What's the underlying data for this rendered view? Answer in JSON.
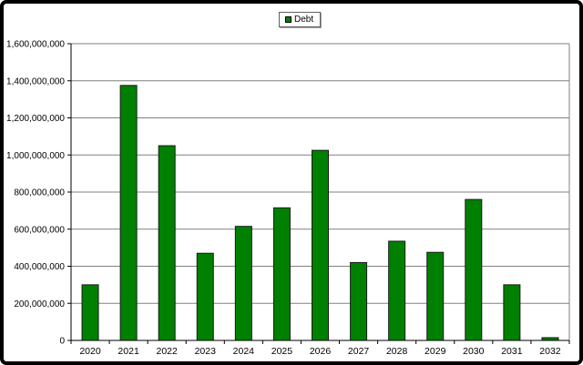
{
  "window": {
    "background": "#ffffff",
    "border_color": "#000000"
  },
  "legend": {
    "label": "Debt",
    "marker_color": "#008000"
  },
  "chart_data": {
    "type": "bar",
    "title": "",
    "categories": [
      "2020",
      "2021",
      "2022",
      "2023",
      "2024",
      "2025",
      "2026",
      "2027",
      "2028",
      "2029",
      "2030",
      "2031",
      "2032"
    ],
    "series": [
      {
        "name": "Debt",
        "color": "#008000",
        "values": [
          300000000,
          1375000000,
          1050000000,
          470000000,
          615000000,
          715000000,
          1025000000,
          420000000,
          535000000,
          475000000,
          760000000,
          300000000,
          15000000
        ]
      }
    ],
    "xlabel": "",
    "ylabel": "",
    "ylim": [
      0,
      1600000000
    ],
    "ytick_step": 200000000,
    "ytick_labels": [
      "0",
      "200,000,000",
      "400,000,000",
      "600,000,000",
      "800,000,000",
      "1,000,000,000",
      "1,200,000,000",
      "1,400,000,000",
      "1,600,000,000"
    ],
    "grid": true,
    "legend_position": "top-center",
    "colors": {
      "bar_fill": "#008000",
      "bar_border": "#1a1a1a",
      "gridline": "#808080",
      "plot_border": "#808080",
      "axis": "#000000",
      "tick": "#404040"
    }
  }
}
